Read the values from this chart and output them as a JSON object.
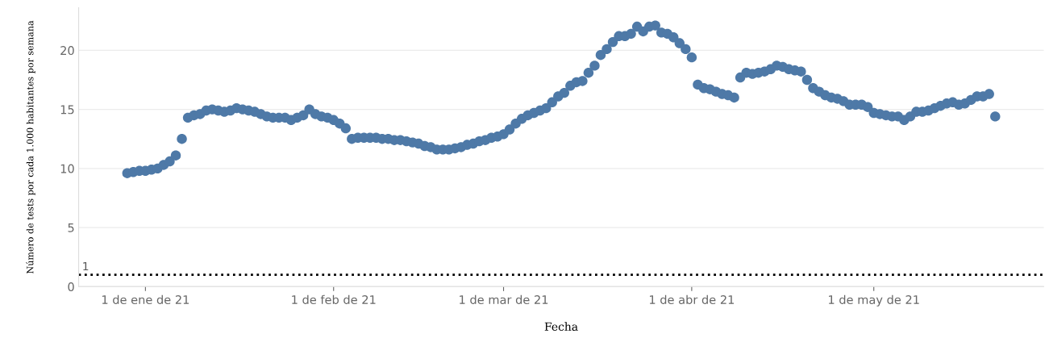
{
  "chart_data": {
    "type": "scatter",
    "xlabel": "Fecha",
    "ylabel": "Número de tests por cada 1.000 habitantes por semana",
    "xlim": [
      "2020-12-21",
      "2021-05-29"
    ],
    "ylim": [
      0,
      23.6
    ],
    "xticks": [
      {
        "value": "2021-01-01",
        "label": "1 de ene de 21"
      },
      {
        "value": "2021-02-01",
        "label": "1 de feb de 21"
      },
      {
        "value": "2021-03-01",
        "label": "1 de mar de 21"
      },
      {
        "value": "2021-04-01",
        "label": "1 de abr de 21"
      },
      {
        "value": "2021-05-01",
        "label": "1 de may de 21"
      }
    ],
    "yticks": [
      0,
      5,
      10,
      15,
      20
    ],
    "grid": "y",
    "marker": "circle",
    "legend": false,
    "ref_lines": [
      {
        "axis": "y",
        "value": 1,
        "label": "1",
        "color": "#000000",
        "line_style": "dotted"
      }
    ],
    "series": [
      {
        "color": "#4e79a7",
        "x": [
          "2020-12-29",
          "2020-12-30",
          "2020-12-31",
          "2021-01-01",
          "2021-01-02",
          "2021-01-03",
          "2021-01-04",
          "2021-01-05",
          "2021-01-06",
          "2021-01-07",
          "2021-01-08",
          "2021-01-09",
          "2021-01-10",
          "2021-01-11",
          "2021-01-12",
          "2021-01-13",
          "2021-01-14",
          "2021-01-15",
          "2021-01-16",
          "2021-01-17",
          "2021-01-18",
          "2021-01-19",
          "2021-01-20",
          "2021-01-21",
          "2021-01-22",
          "2021-01-23",
          "2021-01-24",
          "2021-01-25",
          "2021-01-26",
          "2021-01-27",
          "2021-01-28",
          "2021-01-29",
          "2021-01-30",
          "2021-01-31",
          "2021-02-01",
          "2021-02-02",
          "2021-02-03",
          "2021-02-04",
          "2021-02-05",
          "2021-02-06",
          "2021-02-07",
          "2021-02-08",
          "2021-02-09",
          "2021-02-10",
          "2021-02-11",
          "2021-02-12",
          "2021-02-13",
          "2021-02-14",
          "2021-02-15",
          "2021-02-16",
          "2021-02-17",
          "2021-02-18",
          "2021-02-19",
          "2021-02-20",
          "2021-02-21",
          "2021-02-22",
          "2021-02-23",
          "2021-02-24",
          "2021-02-25",
          "2021-02-26",
          "2021-02-27",
          "2021-02-28",
          "2021-03-01",
          "2021-03-02",
          "2021-03-03",
          "2021-03-04",
          "2021-03-05",
          "2021-03-06",
          "2021-03-07",
          "2021-03-08",
          "2021-03-09",
          "2021-03-10",
          "2021-03-11",
          "2021-03-12",
          "2021-03-13",
          "2021-03-14",
          "2021-03-15",
          "2021-03-16",
          "2021-03-17",
          "2021-03-18",
          "2021-03-19",
          "2021-03-20",
          "2021-03-21",
          "2021-03-22",
          "2021-03-23",
          "2021-03-24",
          "2021-03-25",
          "2021-03-26",
          "2021-03-27",
          "2021-03-28",
          "2021-03-29",
          "2021-03-30",
          "2021-03-31",
          "2021-04-01",
          "2021-04-02",
          "2021-04-03",
          "2021-04-04",
          "2021-04-05",
          "2021-04-06",
          "2021-04-07",
          "2021-04-08",
          "2021-04-09",
          "2021-04-10",
          "2021-04-11",
          "2021-04-12",
          "2021-04-13",
          "2021-04-14",
          "2021-04-15",
          "2021-04-16",
          "2021-04-17",
          "2021-04-18",
          "2021-04-19",
          "2021-04-20",
          "2021-04-21",
          "2021-04-22",
          "2021-04-23",
          "2021-04-24",
          "2021-04-25",
          "2021-04-26",
          "2021-04-27",
          "2021-04-28",
          "2021-04-29",
          "2021-04-30",
          "2021-05-01",
          "2021-05-02",
          "2021-05-03",
          "2021-05-04",
          "2021-05-05",
          "2021-05-06",
          "2021-05-07",
          "2021-05-08",
          "2021-05-09",
          "2021-05-10",
          "2021-05-11",
          "2021-05-12",
          "2021-05-13",
          "2021-05-14",
          "2021-05-15",
          "2021-05-16",
          "2021-05-17",
          "2021-05-18",
          "2021-05-19",
          "2021-05-20",
          "2021-05-21"
        ],
        "values": [
          9.6,
          9.7,
          9.8,
          9.8,
          9.9,
          10.0,
          10.3,
          10.6,
          11.1,
          12.5,
          14.3,
          14.5,
          14.6,
          14.9,
          15.0,
          14.9,
          14.8,
          14.9,
          15.1,
          15.0,
          14.9,
          14.8,
          14.6,
          14.4,
          14.3,
          14.3,
          14.3,
          14.1,
          14.3,
          14.5,
          15.0,
          14.6,
          14.4,
          14.3,
          14.1,
          13.8,
          13.4,
          12.5,
          12.6,
          12.6,
          12.6,
          12.6,
          12.5,
          12.5,
          12.4,
          12.4,
          12.3,
          12.2,
          12.1,
          11.9,
          11.8,
          11.6,
          11.6,
          11.6,
          11.7,
          11.8,
          12.0,
          12.1,
          12.3,
          12.4,
          12.6,
          12.7,
          12.9,
          13.3,
          13.8,
          14.2,
          14.5,
          14.7,
          14.9,
          15.1,
          15.6,
          16.1,
          16.4,
          17.0,
          17.3,
          17.4,
          18.1,
          18.7,
          19.6,
          20.1,
          20.7,
          21.2,
          21.2,
          21.4,
          22.0,
          21.6,
          22.0,
          22.1,
          21.5,
          21.4,
          21.1,
          20.6,
          20.1,
          19.4,
          17.1,
          16.8,
          16.7,
          16.5,
          16.3,
          16.2,
          16.0,
          17.7,
          18.1,
          18.0,
          18.1,
          18.2,
          18.4,
          18.7,
          18.6,
          18.4,
          18.3,
          18.2,
          17.5,
          16.8,
          16.5,
          16.2,
          16.0,
          15.9,
          15.7,
          15.4,
          15.4,
          15.4,
          15.2,
          14.7,
          14.6,
          14.5,
          14.4,
          14.4,
          14.1,
          14.4,
          14.8,
          14.8,
          14.9,
          15.1,
          15.3,
          15.5,
          15.6,
          15.4,
          15.5,
          15.8,
          16.1,
          16.1,
          16.3,
          14.4
        ]
      }
    ]
  }
}
